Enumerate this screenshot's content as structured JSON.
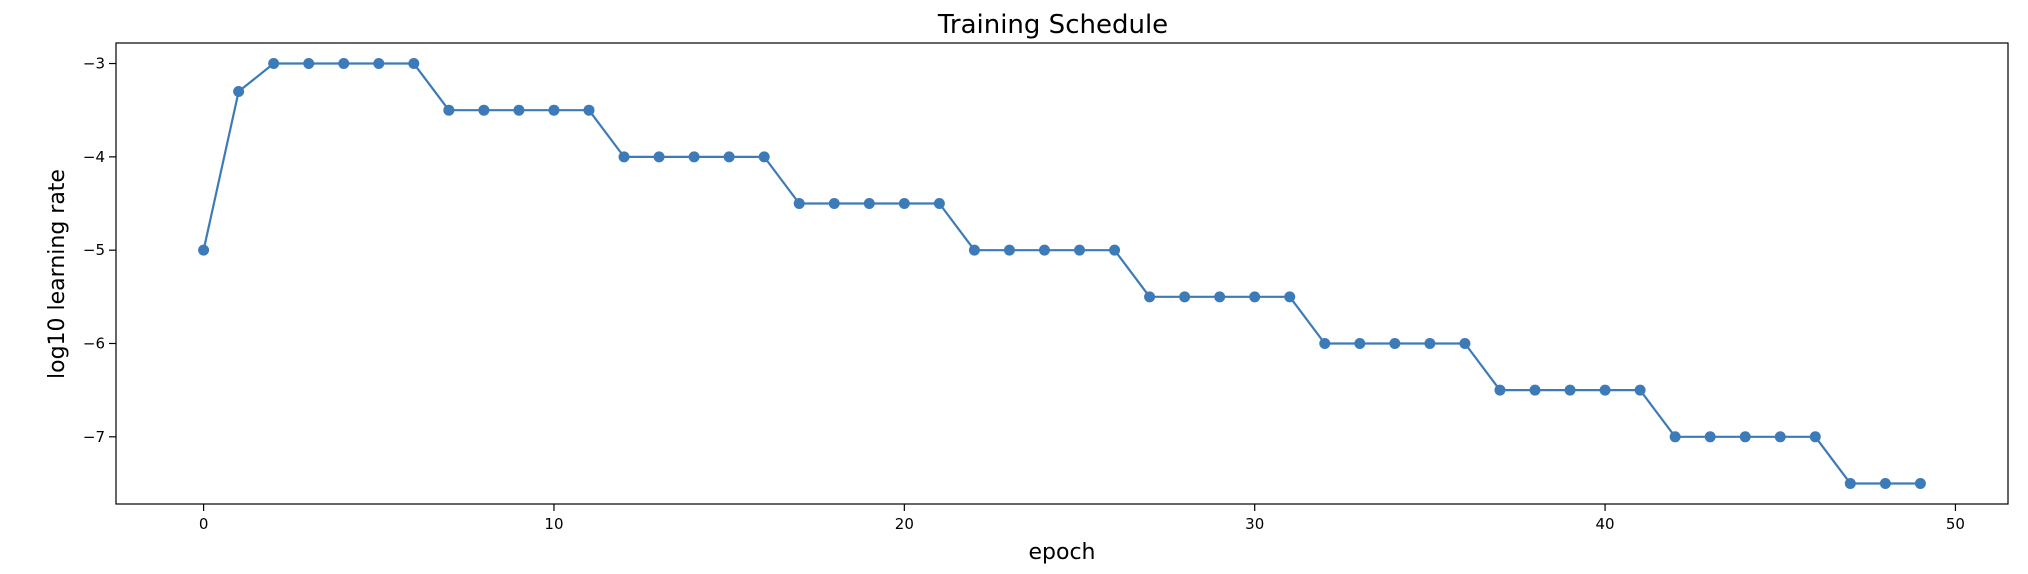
{
  "chart_data": {
    "type": "line",
    "title": "Training Schedule",
    "xlabel": "epoch",
    "ylabel": "log10 learning rate",
    "xlim": [
      -2.5,
      51.5
    ],
    "ylim": [
      -7.72,
      -2.78
    ],
    "xticks": [
      0,
      10,
      20,
      30,
      40,
      50
    ],
    "yticks": [
      -7,
      -6,
      -5,
      -4,
      -3
    ],
    "grid": false,
    "legend": "none",
    "marker": "circle",
    "color": "#3d7ab8",
    "x": [
      0,
      1,
      2,
      3,
      4,
      5,
      6,
      7,
      8,
      9,
      10,
      11,
      12,
      13,
      14,
      15,
      16,
      17,
      18,
      19,
      20,
      21,
      22,
      23,
      24,
      25,
      26,
      27,
      28,
      29,
      30,
      31,
      32,
      33,
      34,
      35,
      36,
      37,
      38,
      39,
      40,
      41,
      42,
      43,
      44,
      45,
      46,
      47,
      48,
      49
    ],
    "y": [
      -5,
      -3.3,
      -3,
      -3,
      -3,
      -3,
      -3,
      -3.5,
      -3.5,
      -3.5,
      -3.5,
      -3.5,
      -4,
      -4,
      -4,
      -4,
      -4,
      -4.5,
      -4.5,
      -4.5,
      -4.5,
      -4.5,
      -5,
      -5,
      -5,
      -5,
      -5,
      -5.5,
      -5.5,
      -5.5,
      -5.5,
      -5.5,
      -6,
      -6,
      -6,
      -6,
      -6,
      -6.5,
      -6.5,
      -6.5,
      -6.5,
      -6.5,
      -7,
      -7,
      -7,
      -7,
      -7,
      -7.5,
      -7.5,
      -7.5
    ]
  }
}
